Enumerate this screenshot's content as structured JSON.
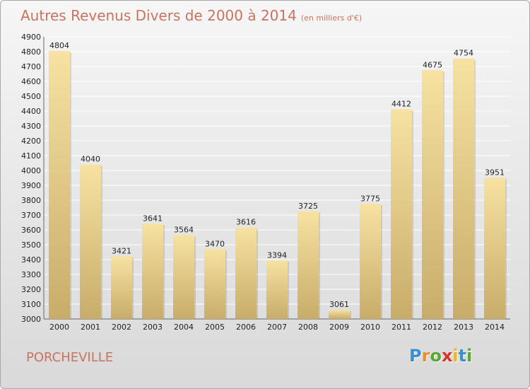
{
  "title": "Autres Revenus Divers de 2000 à 2014",
  "title_unit": "(en milliers d'€)",
  "place": "PORCHEVILLE",
  "logo": {
    "letters": [
      "P",
      "r",
      "o",
      "x",
      "i",
      "t",
      "i"
    ],
    "colors": [
      "#3a8fd0",
      "#e8912a",
      "#5aa832",
      "#d8352a",
      "#e8b820",
      "#3a8fd0",
      "#5aa832"
    ]
  },
  "colors": {
    "title": "#c8745e",
    "bar_light": "#f7e2a2",
    "bar_dark": "#c8ac6a",
    "grid": "#ffffff"
  },
  "chart_data": {
    "type": "bar",
    "categories": [
      "2000",
      "2001",
      "2002",
      "2003",
      "2004",
      "2005",
      "2006",
      "2007",
      "2008",
      "2009",
      "2010",
      "2011",
      "2012",
      "2013",
      "2014"
    ],
    "values": [
      4804,
      4040,
      3421,
      3641,
      3564,
      3470,
      3616,
      3394,
      3725,
      3061,
      3775,
      4412,
      4675,
      4754,
      3951
    ],
    "ylim": [
      3000,
      4900
    ],
    "yticks": [
      3000,
      3100,
      3200,
      3300,
      3400,
      3500,
      3600,
      3700,
      3800,
      3900,
      4000,
      4100,
      4200,
      4300,
      4400,
      4500,
      4600,
      4700,
      4800,
      4900
    ],
    "grid": true,
    "xlabel": "",
    "ylabel": ""
  }
}
